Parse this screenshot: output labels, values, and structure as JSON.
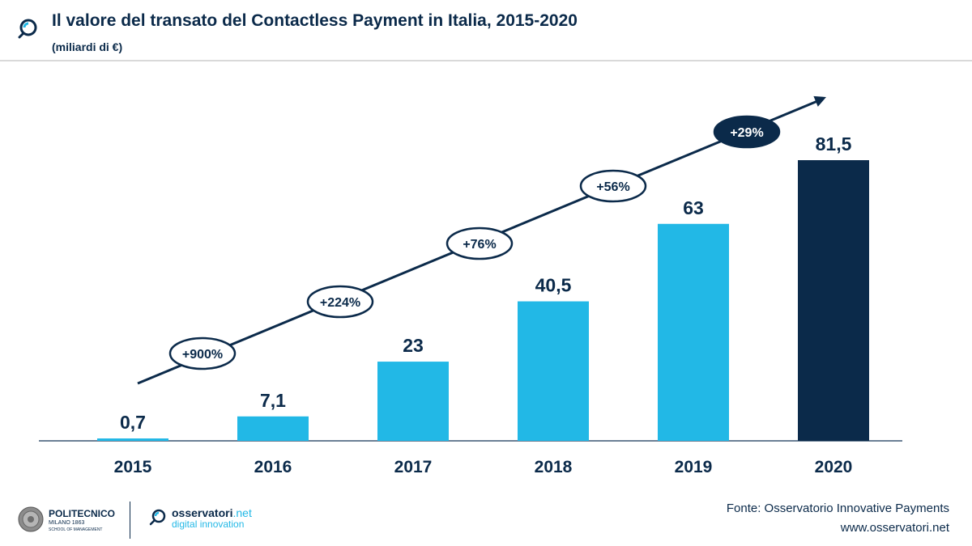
{
  "header": {
    "title": "Il valore del transato del Contactless Payment in Italia, 2015-2020",
    "subtitle": "(miliardi di €)",
    "icon": "magnifier-logo-icon"
  },
  "chart_data": {
    "type": "bar",
    "title": "Il valore del transato del Contactless Payment in Italia, 2015-2020",
    "subtitle": "(miliardi di €)",
    "categories": [
      "2015",
      "2016",
      "2017",
      "2018",
      "2019",
      "2020"
    ],
    "values": [
      0.7,
      7.1,
      23,
      40.5,
      63,
      81.5
    ],
    "data_labels": [
      "0,7",
      "7,1",
      "23",
      "40,5",
      "63",
      "81,5"
    ],
    "growth_labels": [
      "+900%",
      "+224%",
      "+76%",
      "+56%",
      "+29%"
    ],
    "ylim": [
      0,
      81.5
    ],
    "xlabel": "",
    "ylabel": "",
    "grid": false,
    "colors": {
      "bar": "#22b8e6",
      "highlight_bar": "#0b2a4a",
      "text": "#0b2a4a",
      "arrow": "#0b2a4a"
    },
    "highlight_index": 5
  },
  "footer": {
    "politecnico": {
      "name": "POLITECNICO",
      "line1": "MILANO 1863",
      "line2": "SCHOOL OF MANAGEMENT"
    },
    "osservatori": {
      "brand": "osservatori",
      "brand_suffix": ".net",
      "tagline": "digital innovation"
    },
    "source": "Fonte: Osservatorio Innovative Payments",
    "website": "www.osservatori.net"
  }
}
